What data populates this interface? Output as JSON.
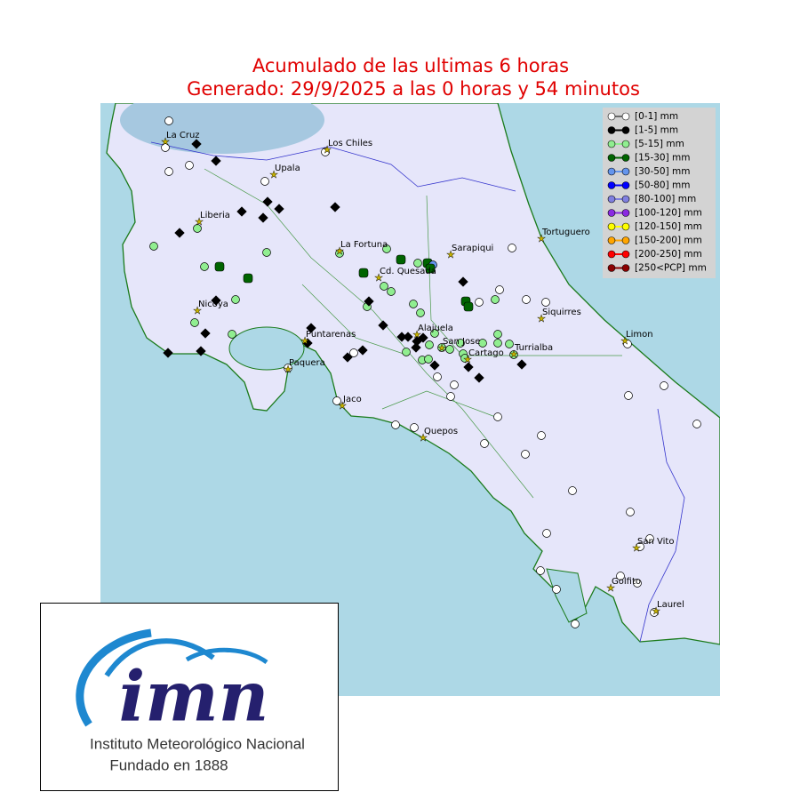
{
  "header": {
    "title": "Acumulado de las ultimas 6 horas",
    "subtitle": "Generado:  29/9/2025 a las 0 horas y 54 minutos"
  },
  "legend": [
    {
      "label": "[0-1] mm",
      "color": "#ffffff"
    },
    {
      "label": "[1-5] mm",
      "color": "#000000"
    },
    {
      "label": "[5-15] mm",
      "color": "#90ee90"
    },
    {
      "label": "[15-30] mm",
      "color": "#006400"
    },
    {
      "label": "[30-50] mm",
      "color": "#6495ed"
    },
    {
      "label": "[50-80] mm",
      "color": "#0000ff"
    },
    {
      "label": "[80-100] mm",
      "color": "#8080e0"
    },
    {
      "label": "[100-120] mm",
      "color": "#8a2be2"
    },
    {
      "label": "[120-150] mm",
      "color": "#ffff00"
    },
    {
      "label": "[150-200] mm",
      "color": "#ffa500"
    },
    {
      "label": "[200-250] mm",
      "color": "#ff0000"
    },
    {
      "label": "[250<PCP] mm",
      "color": "#8b0000"
    }
  ],
  "places": [
    "La Cruz",
    "Los Chiles",
    "Upala",
    "Liberia",
    "La Fortuna",
    "Sarapiqui",
    "Tortuguero",
    "Cd. Quesada",
    "Nicoya",
    "Siquirres",
    "Alajuela",
    "Puntarenas",
    "Limon",
    "San Jose",
    "Turrialba",
    "Paquera",
    "Cartago",
    "Jaco",
    "Quepos",
    "San Vito",
    "Golfito",
    "Laurel"
  ],
  "logo": {
    "acronym": "imn",
    "name": "Instituto Meteorológico Nacional",
    "founded": "Fundado en 1888"
  }
}
